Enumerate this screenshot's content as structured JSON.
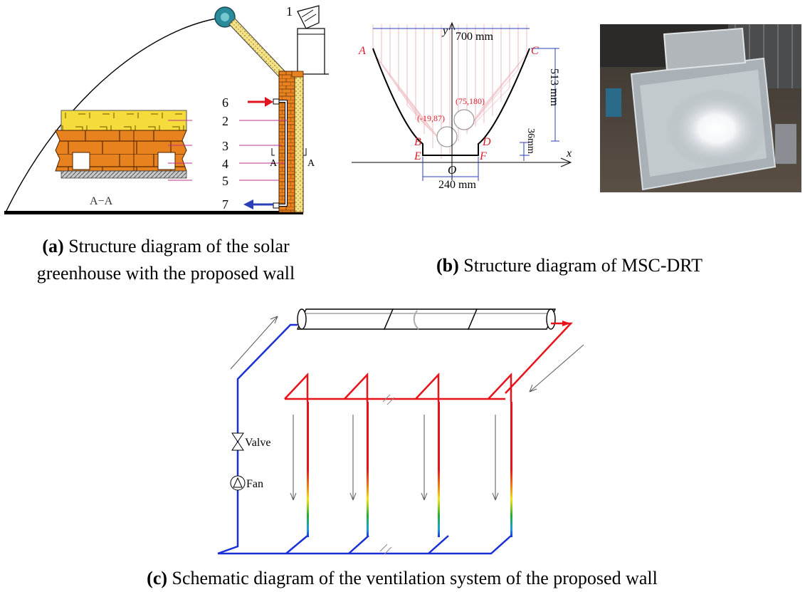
{
  "panel_a": {
    "labels": [
      "1",
      "2",
      "3",
      "4",
      "5",
      "6",
      "7"
    ],
    "section_marks": [
      "A",
      "A"
    ],
    "section_title": "A−A",
    "caption_bold": "(a)",
    "caption_line1": " Structure diagram of the solar",
    "caption_line2": "greenhouse with the proposed wall"
  },
  "panel_b": {
    "width_label": "700 mm",
    "height_label": "513 mm",
    "gap_label": "36mm",
    "base_label": "240 mm",
    "axis_y": "y",
    "axis_x": "x",
    "origin": "O",
    "points": [
      "A",
      "B",
      "C",
      "D",
      "E",
      "F"
    ],
    "circle1_coord": "(-19,87)",
    "circle2_coord": "(75,180)",
    "caption_bold": "(b)",
    "caption_text": " Structure diagram of MSC-DRT"
  },
  "panel_c": {
    "valve_label": "Valve",
    "fan_label": "Fan",
    "caption_bold": "(c)",
    "caption_text": " Schematic diagram of the ventilation system of the proposed wall"
  },
  "colors": {
    "brick": "#e8821e",
    "yellow_layer": "#f5dc3c",
    "cold_pipe": "#1a2fd6",
    "hot_pipe": "#e8121a",
    "arrow_red": "#e0141e",
    "arrow_blue": "#2a3fb8"
  }
}
